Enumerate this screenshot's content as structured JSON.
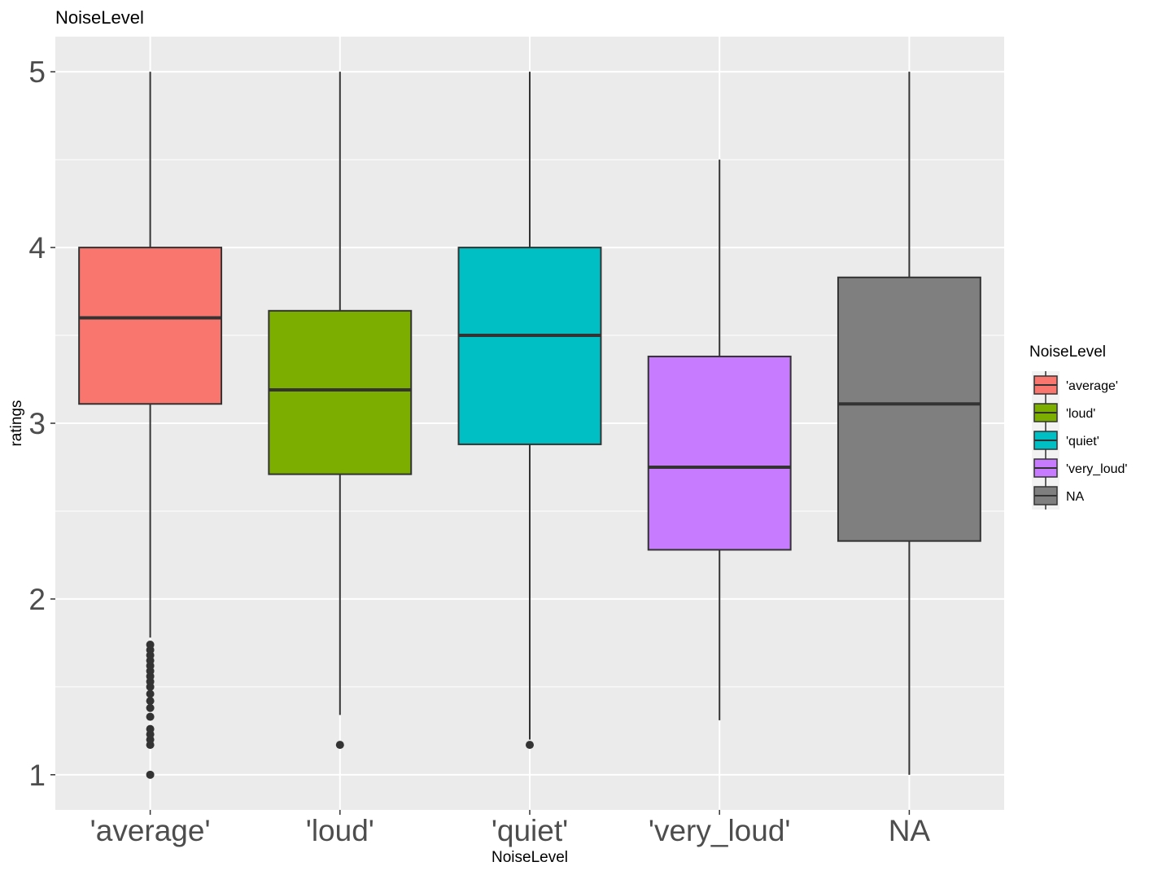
{
  "chart_data": {
    "type": "boxplot",
    "title": "NoiseLevel",
    "xlabel": "NoiseLevel",
    "ylabel": "ratings",
    "ylim": [
      0.8,
      5.2
    ],
    "yticks": [
      1,
      2,
      3,
      4,
      5
    ],
    "ytick_labels": [
      "1",
      "2",
      "3",
      "4",
      "5"
    ],
    "grid": true,
    "categories": [
      "'average'",
      "'loud'",
      "'quiet'",
      "'very_loud'",
      "NA"
    ],
    "colors": [
      "#F8766D",
      "#7CAE00",
      "#00BFC4",
      "#C77CFF",
      "#7F7F7F"
    ],
    "boxes": [
      {
        "category": "'average'",
        "whisker_low": 1.78,
        "q1": 3.11,
        "median": 3.6,
        "q3": 4.0,
        "whisker_high": 5.0,
        "outliers": [
          1.0,
          1.17,
          1.2,
          1.23,
          1.26,
          1.33,
          1.38,
          1.42,
          1.46,
          1.5,
          1.53,
          1.56,
          1.59,
          1.62,
          1.65,
          1.68,
          1.71,
          1.74
        ]
      },
      {
        "category": "'loud'",
        "whisker_low": 1.34,
        "q1": 2.71,
        "median": 3.19,
        "q3": 3.64,
        "whisker_high": 5.0,
        "outliers": [
          1.17
        ]
      },
      {
        "category": "'quiet'",
        "whisker_low": 1.2,
        "q1": 2.88,
        "median": 3.5,
        "q3": 4.0,
        "whisker_high": 5.0,
        "outliers": [
          1.17
        ]
      },
      {
        "category": "'very_loud'",
        "whisker_low": 1.31,
        "q1": 2.28,
        "median": 2.75,
        "q3": 3.38,
        "whisker_high": 4.5,
        "outliers": []
      },
      {
        "category": "NA",
        "whisker_low": 1.0,
        "q1": 2.33,
        "median": 3.11,
        "q3": 3.83,
        "whisker_high": 5.0,
        "outliers": []
      }
    ],
    "legend": {
      "title": "NoiseLevel",
      "position": "right",
      "entries": [
        "'average'",
        "'loud'",
        "'quiet'",
        "'very_loud'",
        "NA"
      ]
    }
  }
}
